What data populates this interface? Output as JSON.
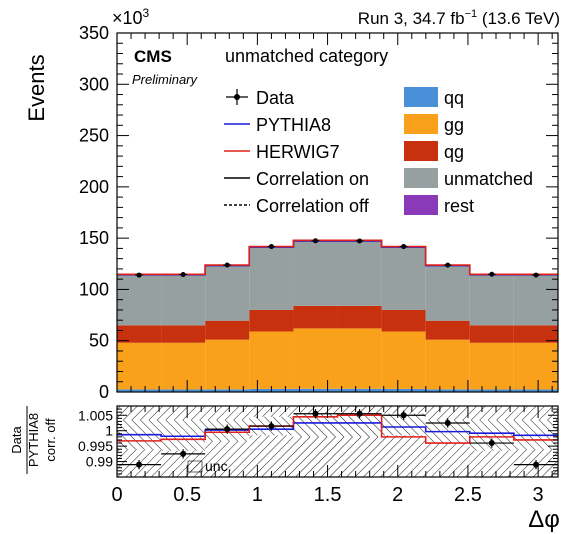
{
  "header": {
    "exponent": "×10",
    "exponent_power": "3",
    "run_prefix": "Run 3, 34.7 fb",
    "run_sup": "−1",
    "run_suffix": " (13.6 TeV)",
    "cms": "CMS",
    "preliminary": "Preliminary",
    "category": "unmatched category"
  },
  "legend_left": [
    {
      "label": "Data",
      "style": "data"
    },
    {
      "label": "PYTHIA8",
      "style": "line",
      "color": "#1a1adb"
    },
    {
      "label": "HERWIG7",
      "style": "line",
      "color": "#e0201a"
    },
    {
      "label": "Correlation on",
      "style": "line",
      "color": "#000000"
    },
    {
      "label": "Correlation off",
      "style": "dashed",
      "color": "#000000"
    }
  ],
  "legend_right": [
    {
      "label": "qq",
      "color": "#4a90d9"
    },
    {
      "label": "gg",
      "color": "#f9a11b"
    },
    {
      "label": "qg",
      "color": "#c8310e"
    },
    {
      "label": "unmatched",
      "color": "#96a0a0"
    },
    {
      "label": "rest",
      "color": "#8a3ab9"
    }
  ],
  "ratio_legend": "unc.",
  "chart_data": {
    "type": "bar",
    "stacked": true,
    "xlabel": "Δφ",
    "ylabel": "Events",
    "ylabel_ratio_top": "Data",
    "ylabel_ratio_bottom": "PYTHIA8",
    "ylabel_ratio_note": "corr. off",
    "xlim": [
      0,
      3.14159
    ],
    "ylim": [
      0,
      350000
    ],
    "ratio_ylim": [
      0.985,
      1.008
    ],
    "x_ticks": [
      0,
      0.5,
      1,
      1.5,
      2,
      2.5,
      3
    ],
    "x_tick_labels": [
      "0",
      "0.5",
      "1",
      "1.5",
      "2",
      "2.5",
      "3"
    ],
    "y_ticks": [
      0,
      50000,
      100000,
      150000,
      200000,
      250000,
      300000,
      350000
    ],
    "y_tick_labels": [
      "0",
      "50",
      "100",
      "150",
      "200",
      "250",
      "300",
      "350"
    ],
    "ratio_ticks": [
      0.99,
      0.995,
      1,
      1.005
    ],
    "ratio_tick_labels": [
      "0.99",
      "0.995",
      "1",
      "1.005"
    ],
    "bin_edges": [
      0,
      0.314,
      0.628,
      0.942,
      1.257,
      1.571,
      1.885,
      2.199,
      2.513,
      2.827,
      3.14159
    ],
    "series": [
      {
        "name": "qq",
        "color": "#4a90d9",
        "values": [
          2500,
          2500,
          2600,
          3000,
          3100,
          3100,
          3000,
          2600,
          2500,
          2500
        ]
      },
      {
        "name": "gg",
        "color": "#f9a11b",
        "values": [
          45500,
          45500,
          48400,
          56000,
          58900,
          58900,
          56000,
          48400,
          45500,
          45500
        ]
      },
      {
        "name": "qg",
        "color": "#c8310e",
        "values": [
          17000,
          17000,
          18500,
          21000,
          22000,
          22000,
          21000,
          18500,
          17000,
          17000
        ]
      },
      {
        "name": "unmatched",
        "color": "#96a0a0",
        "values": [
          49000,
          49000,
          53500,
          61000,
          63000,
          63000,
          61000,
          53500,
          49000,
          49000
        ]
      },
      {
        "name": "rest",
        "color": "#8a3ab9",
        "values": [
          300,
          300,
          300,
          300,
          300,
          300,
          300,
          300,
          300,
          300
        ]
      }
    ],
    "pythia8": [
      114300,
      114300,
      123300,
      141300,
      147300,
      147300,
      141300,
      123300,
      114300,
      114300
    ],
    "herwig7": [
      114700,
      114700,
      123800,
      141800,
      147900,
      147900,
      141800,
      123800,
      114700,
      114700
    ],
    "data_x": [
      0.157,
      0.471,
      0.785,
      1.1,
      1.414,
      1.728,
      2.042,
      2.356,
      2.67,
      2.985
    ],
    "data_y": [
      114000,
      114500,
      123800,
      141800,
      147400,
      147200,
      141800,
      123700,
      114800,
      114000
    ],
    "ratio_data": [
      0.989,
      0.9925,
      1.0005,
      1.0015,
      1.0055,
      1.0055,
      1.005,
      1.0025,
      0.996,
      0.989
    ],
    "ratio_data_err": [
      0.0015,
      0.0015,
      0.0015,
      0.0015,
      0.0015,
      0.0015,
      0.0015,
      0.0015,
      0.0015,
      0.0015
    ],
    "ratio_pythia8": [
      0.9987,
      0.9982,
      1.0002,
      1.0005,
      1.0025,
      1.0025,
      1.0012,
      0.9997,
      0.9992,
      0.9985
    ],
    "ratio_herwig7": [
      0.9967,
      0.9972,
      0.9995,
      1.0015,
      1.0045,
      1.005,
      0.998,
      0.996,
      0.998,
      0.997
    ],
    "ratio_unc_low": [
      0.994,
      0.9935,
      0.9965,
      0.9985,
      0.998,
      0.998,
      0.9985,
      0.996,
      0.9935,
      0.994
    ],
    "ratio_unc_high": [
      1.0035,
      1.0035,
      1.0035,
      1.0045,
      1.0055,
      1.0055,
      1.0055,
      1.0035,
      1.0035,
      1.0035
    ]
  }
}
